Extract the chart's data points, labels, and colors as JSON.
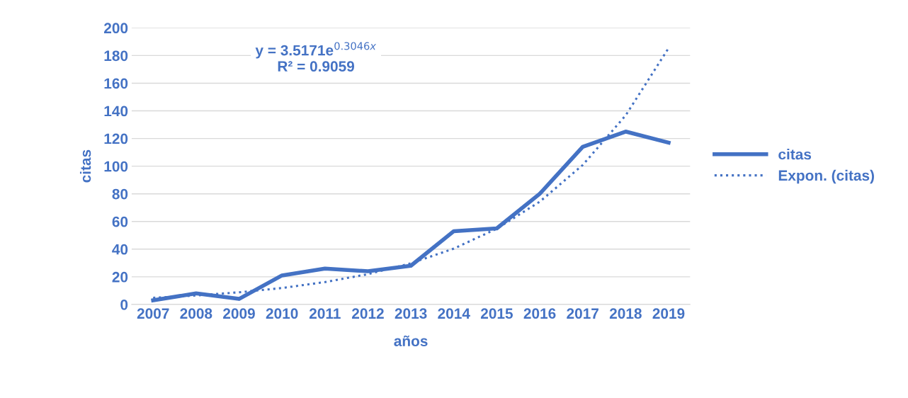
{
  "chart_data": {
    "type": "line",
    "xlabel": "años",
    "ylabel": "citas",
    "categories": [
      "2007",
      "2008",
      "2009",
      "2010",
      "2011",
      "2012",
      "2013",
      "2014",
      "2015",
      "2016",
      "2017",
      "2018",
      "2019"
    ],
    "series": [
      {
        "name": "citas",
        "color": "#4472c4",
        "line_style": "solid",
        "values": [
          3,
          8,
          4,
          21,
          26,
          24,
          28,
          53,
          55,
          80,
          114,
          125,
          117
        ]
      },
      {
        "name": "Expon. (citas)",
        "color": "#4472c4",
        "line_style": "dotted",
        "values": [
          4.8,
          6.5,
          8.8,
          11.9,
          16.2,
          21.9,
          29.8,
          40.4,
          54.8,
          74.3,
          100.8,
          136.7,
          185.4
        ]
      }
    ],
    "ylim": [
      0,
      200
    ],
    "yticks": [
      0,
      20,
      40,
      60,
      80,
      100,
      120,
      140,
      160,
      180,
      200
    ],
    "grid": "y",
    "legend": "right",
    "marker": "none",
    "annotations": [
      "y = 3.5171e$^{0.3046x}$\nR² = 0.9059"
    ]
  }
}
